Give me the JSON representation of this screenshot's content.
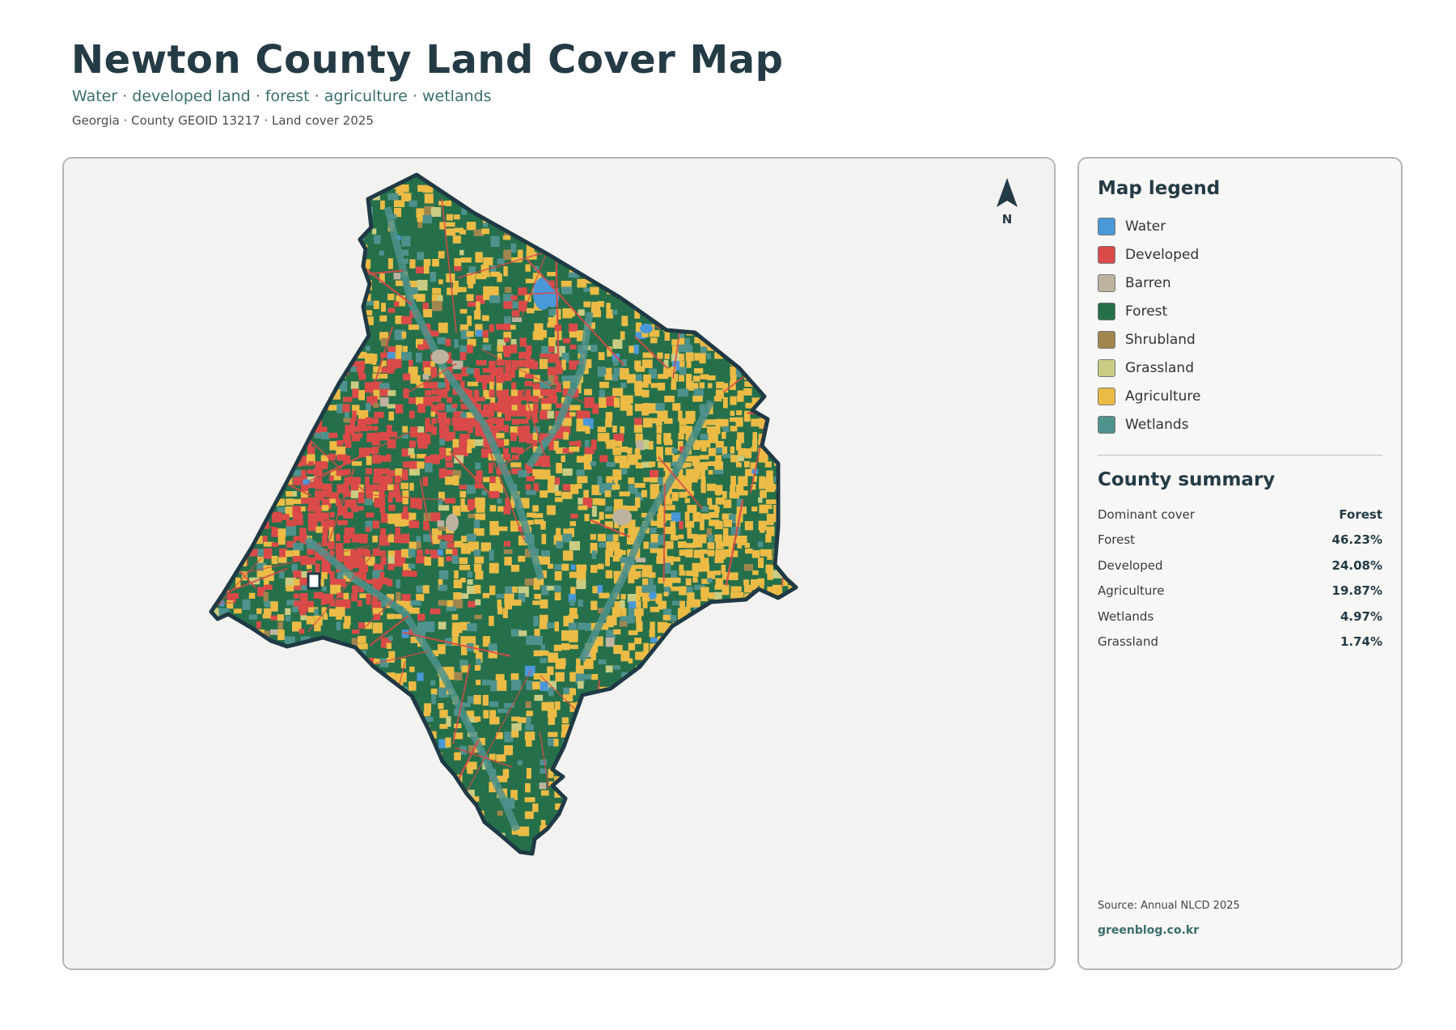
{
  "header": {
    "title": "Newton County Land Cover Map",
    "subtitle": "Water · developed land · forest · agriculture · wetlands",
    "meta": "Georgia · County GEOID 13217 · Land cover 2025"
  },
  "map": {
    "north_label": "N",
    "colors": {
      "water": "#4a98d8",
      "developed": "#d94a48",
      "barren": "#bdb3a0",
      "forest": "#25704a",
      "shrubland": "#a0854f",
      "grassland": "#c8cc82",
      "agriculture": "#ecbb45",
      "wetlands": "#4f928d",
      "outline": "#1f3a44",
      "background": "#f2f2f1"
    }
  },
  "legend": {
    "heading": "Map legend",
    "items": [
      {
        "label": "Water",
        "color": "#4a98d8"
      },
      {
        "label": "Developed",
        "color": "#d94a48"
      },
      {
        "label": "Barren",
        "color": "#bdb3a0"
      },
      {
        "label": "Forest",
        "color": "#25704a"
      },
      {
        "label": "Shrubland",
        "color": "#a0854f"
      },
      {
        "label": "Grassland",
        "color": "#c8cc82"
      },
      {
        "label": "Agriculture",
        "color": "#ecbb45"
      },
      {
        "label": "Wetlands",
        "color": "#4f928d"
      }
    ]
  },
  "summary": {
    "heading": "County summary",
    "rows": [
      {
        "label": "Dominant cover",
        "value": "Forest"
      },
      {
        "label": "Forest",
        "value": "46.23%"
      },
      {
        "label": "Developed",
        "value": "24.08%"
      },
      {
        "label": "Agriculture",
        "value": "19.87%"
      },
      {
        "label": "Wetlands",
        "value": "4.97%"
      },
      {
        "label": "Grassland",
        "value": "1.74%"
      }
    ]
  },
  "footer": {
    "source": "Source: Annual NLCD 2025",
    "site": "greenblog.co.kr"
  }
}
